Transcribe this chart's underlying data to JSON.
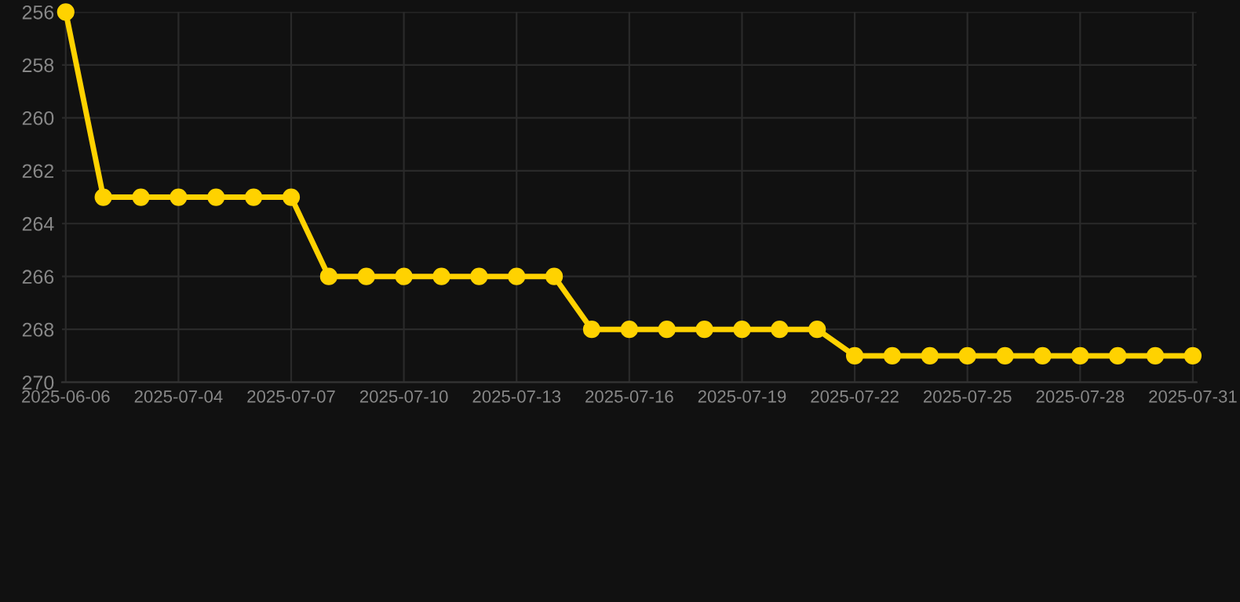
{
  "chart_data": {
    "type": "line",
    "categories": [
      "2025-06-06",
      null,
      null,
      "2025-07-04",
      null,
      null,
      "2025-07-07",
      null,
      null,
      "2025-07-10",
      null,
      null,
      "2025-07-13",
      null,
      null,
      "2025-07-16",
      null,
      null,
      "2025-07-19",
      null,
      null,
      "2025-07-22",
      null,
      null,
      "2025-07-25",
      null,
      null,
      "2025-07-28",
      null,
      null,
      "2025-07-31"
    ],
    "series": [
      {
        "color": "#ffd200",
        "values": [
          256,
          263,
          263,
          263,
          263,
          263,
          263,
          266,
          266,
          266,
          266,
          266,
          266,
          266,
          268,
          268,
          268,
          268,
          268,
          268,
          268,
          269,
          269,
          269,
          269,
          269,
          269,
          269,
          269,
          269,
          269
        ]
      }
    ],
    "ylim": [
      270,
      256
    ],
    "yticks": [
      256,
      258,
      260,
      262,
      264,
      266,
      268,
      270
    ],
    "grid": true,
    "marker": "circle",
    "line_style": "solid"
  }
}
